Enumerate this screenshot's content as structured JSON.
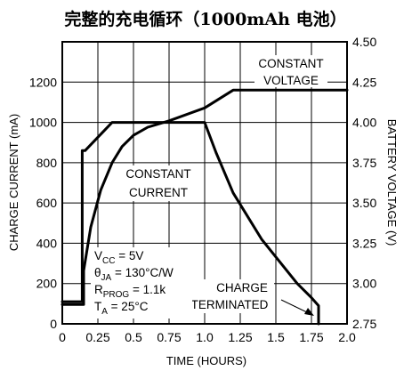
{
  "chart_data": {
    "type": "line",
    "title": "完整的充电循环（1000mAh 电池）",
    "xlabel": "TIME (HOURS)",
    "ylabel_left": "CHARGE CURRENT (mA)",
    "ylabel_right": "BATTERY VOLTAGE (V)",
    "xlim": [
      0,
      2.0
    ],
    "ylim_left": [
      0,
      1400
    ],
    "ylim_right": [
      2.75,
      4.5
    ],
    "x_ticks": [
      "0",
      "0.25",
      "0.5",
      "0.75",
      "1.0",
      "1.25",
      "1.5",
      "1.75",
      "2.0"
    ],
    "y_ticks_left": [
      "0",
      "200",
      "400",
      "600",
      "800",
      "1000",
      "1200"
    ],
    "y_ticks_right": [
      "2.75",
      "3.00",
      "3.25",
      "3.50",
      "3.75",
      "4.00",
      "4.25",
      "4.50"
    ],
    "grid": true,
    "series": [
      {
        "axis": "left",
        "x": [
          0,
          0.14,
          0.14,
          0.16,
          0.35,
          1.0,
          1.08,
          1.2,
          1.4,
          1.65,
          1.75,
          1.8,
          1.8
        ],
        "y": [
          110,
          110,
          860,
          860,
          1000,
          1000,
          850,
          650,
          420,
          200,
          130,
          90,
          0
        ]
      },
      {
        "axis": "right",
        "x": [
          0,
          0.15,
          0.15,
          0.2,
          0.27,
          0.35,
          0.42,
          0.5,
          0.6,
          0.75,
          1.0,
          1.2,
          2.0
        ],
        "y": [
          2.87,
          2.87,
          3.08,
          3.35,
          3.58,
          3.75,
          3.85,
          3.92,
          3.97,
          4.01,
          4.09,
          4.2,
          4.2
        ]
      }
    ],
    "annotations": {
      "constant_voltage": [
        "CONSTANT",
        "VOLTAGE"
      ],
      "constant_current": [
        "CONSTANT",
        "CURRENT"
      ],
      "charge_terminated": [
        "CHARGE",
        "TERMINATED"
      ],
      "conditions": [
        {
          "symbol": "V",
          "sub": "CC",
          "value": " = 5V"
        },
        {
          "symbol": "θ",
          "sub": "JA",
          "value": " = 130°C/W"
        },
        {
          "symbol": "R",
          "sub": "PROG",
          "value": " = 1.1k"
        },
        {
          "symbol": "T",
          "sub": "A",
          "value": " = 25°C"
        }
      ]
    }
  }
}
